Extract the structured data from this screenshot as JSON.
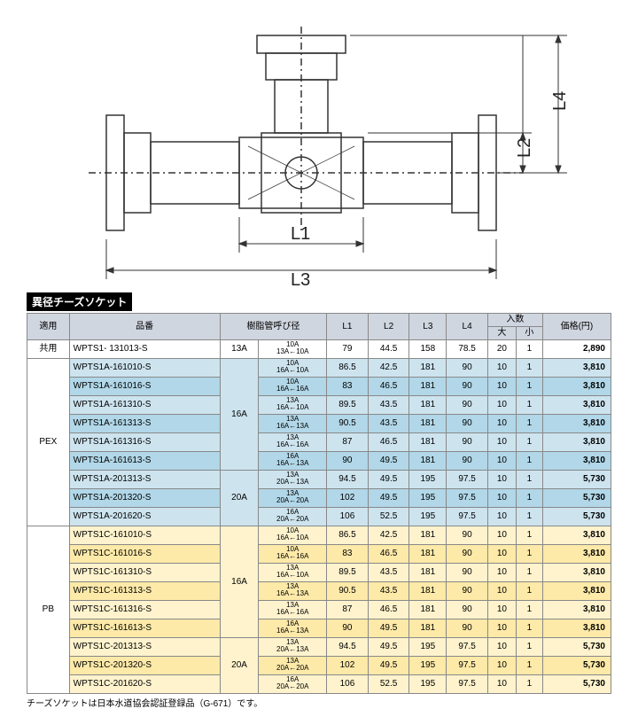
{
  "diagram": {
    "labels": {
      "L1": "L1",
      "L2": "L2",
      "L3": "L3",
      "L4": "L4"
    },
    "stroke": "#333333",
    "font": "16px"
  },
  "title": "異径チーズソケット",
  "columns": {
    "cat": "適用",
    "pn": "品番",
    "dia": "樹脂管呼び径",
    "L1": "L1",
    "L2": "L2",
    "L3": "L3",
    "L4": "L4",
    "qty": "入数",
    "qty_l": "大",
    "qty_s": "小",
    "price": "価格(円)"
  },
  "rows": [
    {
      "cls": "row-white",
      "cat": "共用",
      "pn": "WPTS1- 131013-S",
      "dia_main": "13A",
      "dia_top": "10A",
      "dia_bot": "13A←10A",
      "L1": "79",
      "L2": "44.5",
      "L3": "158",
      "L4": "78.5",
      "ql": "20",
      "qs": "1",
      "price": "2,890"
    },
    {
      "cls": "row-blue-light",
      "cat": "",
      "pn": "WPTS1A-161010-S",
      "dia_main": "",
      "dia_top": "10A",
      "dia_bot": "16A←10A",
      "L1": "86.5",
      "L2": "42.5",
      "L3": "181",
      "L4": "90",
      "ql": "10",
      "qs": "1",
      "price": "3,810"
    },
    {
      "cls": "row-blue-dark",
      "cat": "",
      "pn": "WPTS1A-161016-S",
      "dia_main": "",
      "dia_top": "10A",
      "dia_bot": "16A←16A",
      "L1": "83",
      "L2": "46.5",
      "L3": "181",
      "L4": "90",
      "ql": "10",
      "qs": "1",
      "price": "3,810"
    },
    {
      "cls": "row-blue-light",
      "cat": "",
      "pn": "WPTS1A-161310-S",
      "dia_main": "",
      "dia_top": "13A",
      "dia_bot": "16A←10A",
      "L1": "89.5",
      "L2": "43.5",
      "L3": "181",
      "L4": "90",
      "ql": "10",
      "qs": "1",
      "price": "3,810"
    },
    {
      "cls": "row-blue-dark",
      "cat": "PEX",
      "pn": "WPTS1A-161313-S",
      "dia_main": "16A",
      "dia_top": "13A",
      "dia_bot": "16A←13A",
      "L1": "90.5",
      "L2": "43.5",
      "L3": "181",
      "L4": "90",
      "ql": "10",
      "qs": "1",
      "price": "3,810"
    },
    {
      "cls": "row-blue-light",
      "cat": "",
      "pn": "WPTS1A-161316-S",
      "dia_main": "",
      "dia_top": "13A",
      "dia_bot": "16A←16A",
      "L1": "87",
      "L2": "46.5",
      "L3": "181",
      "L4": "90",
      "ql": "10",
      "qs": "1",
      "price": "3,810"
    },
    {
      "cls": "row-blue-dark",
      "cat": "",
      "pn": "WPTS1A-161613-S",
      "dia_main": "",
      "dia_top": "16A",
      "dia_bot": "16A←13A",
      "L1": "90",
      "L2": "49.5",
      "L3": "181",
      "L4": "90",
      "ql": "10",
      "qs": "1",
      "price": "3,810"
    },
    {
      "cls": "row-blue-light",
      "cat": "",
      "pn": "WPTS1A-201313-S",
      "dia_main": "",
      "dia_top": "13A",
      "dia_bot": "20A←13A",
      "L1": "94.5",
      "L2": "49.5",
      "L3": "195",
      "L4": "97.5",
      "ql": "10",
      "qs": "1",
      "price": "5,730"
    },
    {
      "cls": "row-blue-dark",
      "cat": "",
      "pn": "WPTS1A-201320-S",
      "dia_main": "20A",
      "dia_top": "13A",
      "dia_bot": "20A←20A",
      "L1": "102",
      "L2": "49.5",
      "L3": "195",
      "L4": "97.5",
      "ql": "10",
      "qs": "1",
      "price": "5,730"
    },
    {
      "cls": "row-blue-light",
      "cat": "",
      "pn": "WPTS1A-201620-S",
      "dia_main": "",
      "dia_top": "16A",
      "dia_bot": "20A←20A",
      "L1": "106",
      "L2": "52.5",
      "L3": "195",
      "L4": "97.5",
      "ql": "10",
      "qs": "1",
      "price": "5,730"
    },
    {
      "cls": "row-yel-light",
      "cat": "",
      "pn": "WPTS1C-161010-S",
      "dia_main": "",
      "dia_top": "10A",
      "dia_bot": "16A←10A",
      "L1": "86.5",
      "L2": "42.5",
      "L3": "181",
      "L4": "90",
      "ql": "10",
      "qs": "1",
      "price": "3,810"
    },
    {
      "cls": "row-yel-dark",
      "cat": "",
      "pn": "WPTS1C-161016-S",
      "dia_main": "",
      "dia_top": "10A",
      "dia_bot": "16A←16A",
      "L1": "83",
      "L2": "46.5",
      "L3": "181",
      "L4": "90",
      "ql": "10",
      "qs": "1",
      "price": "3,810"
    },
    {
      "cls": "row-yel-light",
      "cat": "",
      "pn": "WPTS1C-161310-S",
      "dia_main": "",
      "dia_top": "13A",
      "dia_bot": "16A←10A",
      "L1": "89.5",
      "L2": "43.5",
      "L3": "181",
      "L4": "90",
      "ql": "10",
      "qs": "1",
      "price": "3,810"
    },
    {
      "cls": "row-yel-dark",
      "cat": "PB",
      "pn": "WPTS1C-161313-S",
      "dia_main": "16A",
      "dia_top": "13A",
      "dia_bot": "16A←13A",
      "L1": "90.5",
      "L2": "43.5",
      "L3": "181",
      "L4": "90",
      "ql": "10",
      "qs": "1",
      "price": "3,810"
    },
    {
      "cls": "row-yel-light",
      "cat": "",
      "pn": "WPTS1C-161316-S",
      "dia_main": "",
      "dia_top": "13A",
      "dia_bot": "16A←16A",
      "L1": "87",
      "L2": "46.5",
      "L3": "181",
      "L4": "90",
      "ql": "10",
      "qs": "1",
      "price": "3,810"
    },
    {
      "cls": "row-yel-dark",
      "cat": "",
      "pn": "WPTS1C-161613-S",
      "dia_main": "",
      "dia_top": "16A",
      "dia_bot": "16A←13A",
      "L1": "90",
      "L2": "49.5",
      "L3": "181",
      "L4": "90",
      "ql": "10",
      "qs": "1",
      "price": "3,810"
    },
    {
      "cls": "row-yel-light",
      "cat": "",
      "pn": "WPTS1C-201313-S",
      "dia_main": "",
      "dia_top": "13A",
      "dia_bot": "20A←13A",
      "L1": "94.5",
      "L2": "49.5",
      "L3": "195",
      "L4": "97.5",
      "ql": "10",
      "qs": "1",
      "price": "5,730"
    },
    {
      "cls": "row-yel-dark",
      "cat": "",
      "pn": "WPTS1C-201320-S",
      "dia_main": "20A",
      "dia_top": "13A",
      "dia_bot": "20A←20A",
      "L1": "102",
      "L2": "49.5",
      "L3": "195",
      "L4": "97.5",
      "ql": "10",
      "qs": "1",
      "price": "5,730"
    },
    {
      "cls": "row-yel-light",
      "cat": "",
      "pn": "WPTS1C-201620-S",
      "dia_main": "",
      "dia_top": "16A",
      "dia_bot": "20A←20A",
      "L1": "106",
      "L2": "52.5",
      "L3": "195",
      "L4": "97.5",
      "ql": "10",
      "qs": "1",
      "price": "5,730"
    }
  ],
  "footnote": "チーズソケットは日本水道協会認証登録品（G-671）です。",
  "groups": {
    "cat_spans": [
      [
        0,
        1
      ],
      [
        1,
        9
      ],
      [
        10,
        9
      ]
    ],
    "dia_spans": [
      [
        0,
        1
      ],
      [
        1,
        6
      ],
      [
        7,
        3
      ],
      [
        10,
        6
      ],
      [
        16,
        3
      ]
    ]
  }
}
